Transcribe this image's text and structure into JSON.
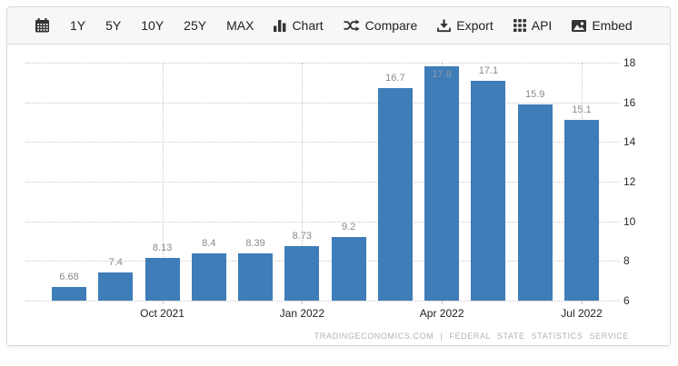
{
  "toolbar": {
    "calendar_button": {
      "icon": "calendar"
    },
    "range_buttons": [
      "1Y",
      "5Y",
      "10Y",
      "25Y",
      "MAX"
    ],
    "actions": [
      {
        "label": "Chart",
        "icon": "bar-chart"
      },
      {
        "label": "Compare",
        "icon": "shuffle"
      },
      {
        "label": "Export",
        "icon": "download"
      },
      {
        "label": "API",
        "icon": "grid"
      },
      {
        "label": "Embed",
        "icon": "image"
      }
    ]
  },
  "chart_data": {
    "type": "bar",
    "title": "",
    "xlabel": "",
    "ylabel": "",
    "values": [
      6.68,
      7.4,
      8.13,
      8.4,
      8.39,
      8.73,
      9.2,
      16.7,
      17.8,
      17.1,
      15.9,
      15.1
    ],
    "data_labels": [
      "6.68",
      "7.4",
      "8.13",
      "8.4",
      "8.39",
      "8.73",
      "9.2",
      "16.7",
      "17.8",
      "17.1",
      "15.9",
      "15.1"
    ],
    "inside_label_index": 8,
    "x_ticks": [
      {
        "label": "Oct 2021",
        "bar_index": 2
      },
      {
        "label": "Jan 2022",
        "bar_index": 5
      },
      {
        "label": "Apr 2022",
        "bar_index": 8
      },
      {
        "label": "Jul 2022",
        "bar_index": 11
      }
    ],
    "y_ticks": [
      6,
      8,
      10,
      12,
      14,
      16,
      18
    ],
    "ylim": [
      6,
      18
    ],
    "axis_side": "right",
    "grid": "dotted",
    "legend": "none",
    "bar_color": "#3e7db8"
  },
  "attribution": "TRADINGECONOMICS.COM | FEDERAL STATE STATISTICS SERVICE"
}
